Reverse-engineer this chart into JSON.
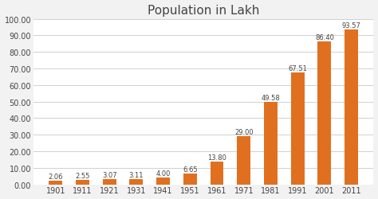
{
  "title": "Population in Lakh",
  "categories": [
    "1901",
    "1911",
    "1921",
    "1931",
    "1941",
    "1951",
    "1961",
    "1971",
    "1981",
    "1991",
    "2001",
    "2011"
  ],
  "values": [
    2.06,
    2.55,
    3.07,
    3.11,
    4.0,
    6.65,
    13.8,
    29.0,
    49.58,
    67.51,
    86.4,
    93.57
  ],
  "bar_color": "#E07020",
  "ylim": [
    0,
    100
  ],
  "yticks": [
    0.0,
    10.0,
    20.0,
    30.0,
    40.0,
    50.0,
    60.0,
    70.0,
    80.0,
    90.0,
    100.0
  ],
  "background_color": "#f2f2f2",
  "plot_bg_color": "#ffffff",
  "grid_color": "#d0d0d0",
  "title_fontsize": 11,
  "label_fontsize": 7,
  "annotation_fontsize": 6,
  "bar_width": 0.5
}
